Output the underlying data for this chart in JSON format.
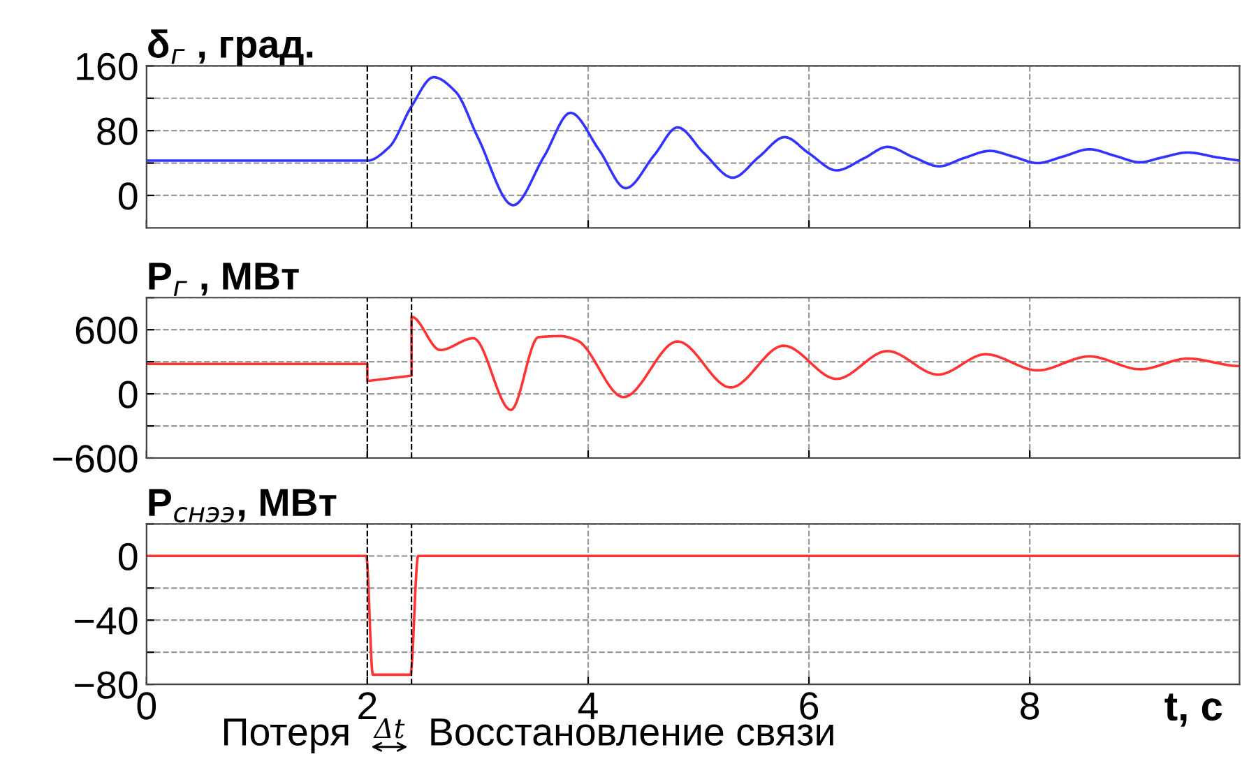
{
  "chart_data": [
    {
      "type": "line",
      "ylabel": "δ$_{г}$ , град.",
      "x": [
        0,
        2.0,
        2.2,
        2.4,
        2.6,
        2.8,
        3.0,
        3.32,
        3.6,
        3.84,
        4.1,
        4.34,
        4.6,
        4.81,
        5.05,
        5.31,
        5.55,
        5.78,
        6.0,
        6.25,
        6.5,
        6.71,
        6.95,
        7.18,
        7.4,
        7.64,
        7.85,
        8.07,
        8.3,
        8.54,
        8.77,
        9.0,
        9.2,
        9.43,
        9.7,
        9.9
      ],
      "series": [
        {
          "color": "#3333ff",
          "values": [
            43,
            43,
            60,
            110,
            146,
            128,
            72,
            -12,
            48,
            102,
            56,
            9,
            50,
            84,
            52,
            22,
            48,
            72,
            52,
            31,
            46,
            60,
            47,
            36,
            46,
            55,
            48,
            40,
            48,
            57,
            49,
            41,
            47,
            53,
            47,
            43
          ]
        }
      ],
      "xlim": [
        0,
        9.9
      ],
      "xticks": [
        0,
        2,
        4,
        6,
        8
      ],
      "ylim": [
        -40,
        160
      ],
      "yticks": [
        0,
        {
          "value": 40,
          "label": null
        },
        80,
        {
          "value": 120,
          "label": null
        },
        160
      ],
      "grid": true,
      "tick_labels": "y",
      "ref_lines": [
        {
          "axis": "x",
          "value": 2.0,
          "color": "#000000",
          "line_style": "dashed"
        },
        {
          "axis": "x",
          "value": 2.4,
          "color": "#000000",
          "line_style": "dashed"
        }
      ]
    },
    {
      "type": "line",
      "ylabel": "P$_{г}$ , МВт",
      "x": [
        0,
        2.0,
        2.0,
        2.4,
        2.4,
        2.66,
        2.96,
        3.3,
        3.55,
        3.75,
        3.9,
        4.32,
        4.81,
        5.29,
        5.77,
        6.25,
        6.71,
        7.17,
        7.6,
        8.07,
        8.54,
        9.0,
        9.43,
        9.9
      ],
      "series": [
        {
          "color": "#ff3333",
          "values": [
            280,
            280,
            120,
            170,
            720,
            410,
            520,
            -150,
            530,
            540,
            500,
            -30,
            490,
            60,
            450,
            140,
            400,
            180,
            370,
            220,
            350,
            230,
            330,
            260
          ]
        }
      ],
      "xlim": [
        0,
        9.9
      ],
      "xticks": [
        0,
        2,
        4,
        6,
        8
      ],
      "ylim": [
        -600,
        900
      ],
      "yticks": [
        -600,
        {
          "value": -300,
          "label": null
        },
        0,
        {
          "value": 300,
          "label": null
        },
        600,
        {
          "value": 900,
          "label": null
        }
      ],
      "grid": true,
      "tick_labels": "y",
      "ref_lines": [
        {
          "axis": "x",
          "value": 2.0,
          "color": "#000000",
          "line_style": "dashed"
        },
        {
          "axis": "x",
          "value": 2.4,
          "color": "#000000",
          "line_style": "dashed"
        }
      ]
    },
    {
      "type": "line",
      "ylabel": "P$_{снээ}$, МВт",
      "xlabel": "t, с",
      "x": [
        0,
        1.99,
        2.05,
        2.39,
        2.46,
        9.9
      ],
      "series": [
        {
          "color": "#ff3333",
          "values": [
            0,
            0,
            -74,
            -74,
            0,
            0
          ]
        }
      ],
      "xlim": [
        0,
        9.9
      ],
      "xticks": [
        0,
        2,
        4,
        6,
        8
      ],
      "ylim": [
        -80,
        20
      ],
      "yticks": [
        -80,
        {
          "value": -60,
          "label": null
        },
        -40,
        {
          "value": -20,
          "label": null
        },
        0,
        {
          "value": 20,
          "label": null
        }
      ],
      "grid": true,
      "ref_lines": [
        {
          "axis": "x",
          "value": 2.0,
          "color": "#000000",
          "line_style": "dashed"
        },
        {
          "axis": "x",
          "value": 2.4,
          "color": "#000000",
          "line_style": "dashed"
        }
      ],
      "annotations": [
        "Потеря",
        "Δt",
        "Восстановление связи"
      ]
    }
  ]
}
